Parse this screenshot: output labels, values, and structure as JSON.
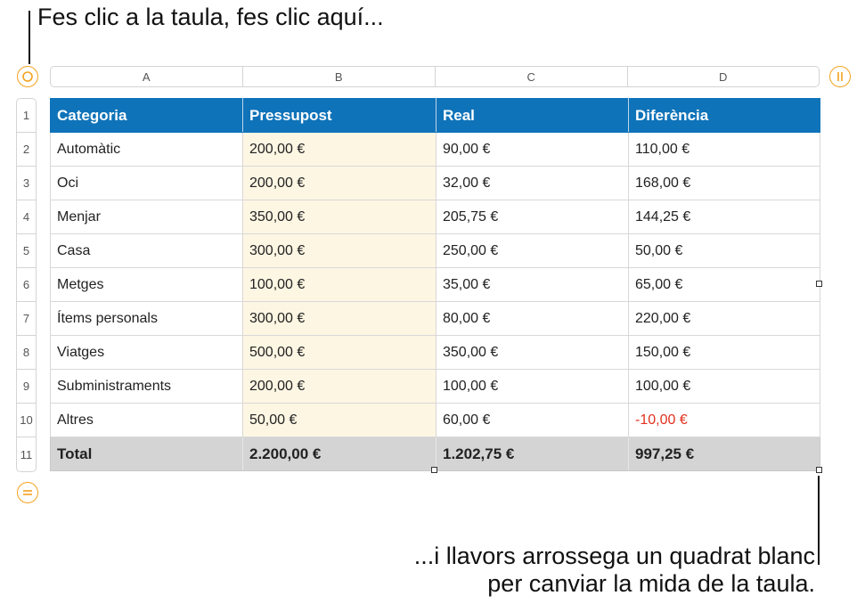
{
  "callouts": {
    "top": "Fes clic a la taula, fes clic aquí...",
    "bottom_line1": "...i llavors arrossega un quadrat blanc",
    "bottom_line2": "per canviar la mida de la taula."
  },
  "column_headers": [
    "A",
    "B",
    "C",
    "D"
  ],
  "row_headers": [
    "1",
    "2",
    "3",
    "4",
    "5",
    "6",
    "7",
    "8",
    "9",
    "10",
    "11"
  ],
  "icons": {
    "select_table": "circle-icon",
    "add_column": "double-bar-icon",
    "add_row": "double-line-icon"
  },
  "colors": {
    "header_fill": "#0f73b9",
    "budget_column_fill": "#fdf6e3",
    "footer_fill": "#d4d4d4",
    "negative_text": "#e2311e",
    "control_accent": "#f3a21d"
  },
  "table": {
    "header": [
      "Categoria",
      "Pressupost",
      "Real",
      "Diferència"
    ],
    "rows": [
      [
        "Automàtic",
        "200,00 €",
        "90,00 €",
        "110,00 €"
      ],
      [
        "Oci",
        "200,00 €",
        "32,00 €",
        "168,00 €"
      ],
      [
        "Menjar",
        "350,00 €",
        "205,75 €",
        "144,25 €"
      ],
      [
        "Casa",
        "300,00 €",
        "250,00 €",
        "50,00 €"
      ],
      [
        "Metges",
        "100,00 €",
        "35,00 €",
        "65,00 €"
      ],
      [
        "Ítems personals",
        "300,00 €",
        "80,00 €",
        "220,00 €"
      ],
      [
        "Viatges",
        "500,00 €",
        "350,00 €",
        "150,00 €"
      ],
      [
        "Subministraments",
        "200,00 €",
        "100,00 €",
        "100,00 €"
      ],
      [
        "Altres",
        "50,00 €",
        "60,00 €",
        "-10,00 €"
      ]
    ],
    "footer": [
      "Total",
      "2.200,00 €",
      "1.202,75 €",
      "997,25 €"
    ]
  }
}
